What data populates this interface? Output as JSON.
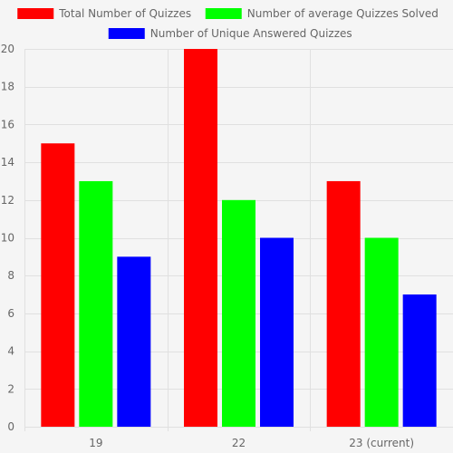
{
  "chart_data": {
    "type": "bar",
    "categories": [
      "19",
      "22",
      "23 (current)"
    ],
    "series": [
      {
        "name": "Total Number of Quizzes",
        "color": "#ff0000",
        "values": [
          15,
          20,
          13
        ]
      },
      {
        "name": "Number of average Quizzes Solved",
        "color": "#00ff00",
        "values": [
          13,
          12,
          10
        ]
      },
      {
        "name": "Number of Unique Answered Quizzes",
        "color": "#0000ff",
        "values": [
          9,
          10,
          7
        ]
      }
    ],
    "ylim": [
      0,
      20
    ],
    "yticks": [
      0,
      2,
      4,
      6,
      8,
      10,
      12,
      14,
      16,
      18,
      20
    ],
    "grid": true,
    "legend_position": "top"
  }
}
